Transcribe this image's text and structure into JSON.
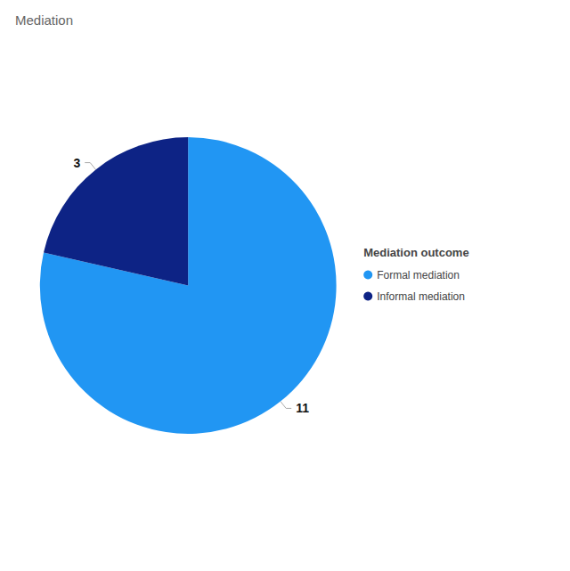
{
  "chart_data": {
    "type": "pie",
    "title": "Mediation",
    "legend_title": "Mediation outcome",
    "categories": [
      "Formal mediation",
      "Informal mediation"
    ],
    "values": [
      11,
      3
    ],
    "colors": [
      "#2196F3",
      "#0D2385"
    ],
    "data_labels": true,
    "legend": "right"
  }
}
